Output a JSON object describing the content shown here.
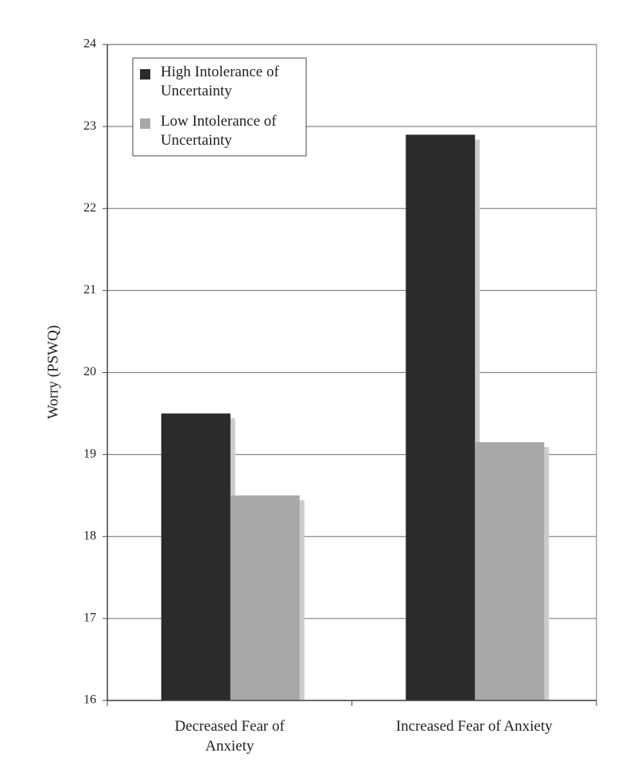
{
  "chart_data": {
    "type": "bar",
    "y_label": "Worry (PSWQ)",
    "categories": [
      "Decreased Fear of Anxiety",
      "Increased Fear of Anxiety"
    ],
    "series": [
      {
        "name": "High Intolerance of Uncertainty",
        "color": "#2b2b2b",
        "values": [
          19.5,
          22.9
        ]
      },
      {
        "name": "Low Intolerance of Uncertainty",
        "color": "#a8a8a8",
        "values": [
          18.5,
          19.15
        ]
      }
    ],
    "ylim": [
      16,
      24
    ],
    "yticks": [
      16,
      17,
      18,
      19,
      20,
      21,
      22,
      23,
      24
    ],
    "grid": true,
    "legend": "upper left"
  }
}
